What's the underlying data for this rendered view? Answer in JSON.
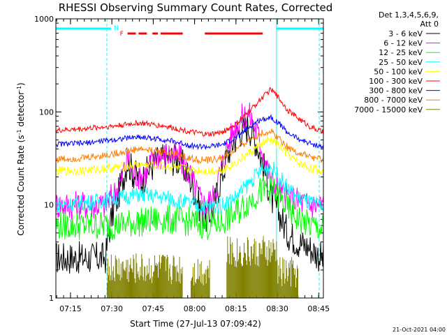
{
  "chart_data": {
    "type": "line",
    "title": "RHESSI Observing Summary Count Rates, Corrected",
    "xlabel": "Start Time (27-Jul-13 07:09:42)",
    "ylabel": "Corrected Count Rate (s⁻¹ detector⁻¹)",
    "ylog": true,
    "ylim": [
      1,
      1000
    ],
    "xlim_min": [
      0,
      97
    ],
    "x_ticks": [
      "07:15",
      "07:30",
      "07:45",
      "08:00",
      "08:15",
      "08:30",
      "08:45"
    ],
    "x_tick_min": [
      5.3,
      20.3,
      35.3,
      50.3,
      65.3,
      80.3,
      95.3
    ],
    "y_ticks": [
      "1",
      "10",
      "100",
      "1000"
    ],
    "y_tick_vals": [
      1,
      10,
      100,
      1000
    ],
    "legend_title": [
      "Det 1,3,4,5,6,9,",
      "Att 0"
    ],
    "series": [
      {
        "name": "3 - 6 keV",
        "color": "#000000",
        "t": [
          0,
          18,
          19,
          20,
          23,
          26,
          28,
          31,
          34,
          37,
          40,
          45,
          49,
          52,
          54,
          57,
          60,
          63,
          66,
          70,
          73,
          76,
          78,
          81,
          84,
          88,
          92,
          97
        ],
        "v": [
          2.7,
          2.7,
          4.5,
          7,
          14,
          30,
          22,
          18,
          25,
          30,
          32,
          30,
          18,
          10,
          7,
          9,
          20,
          40,
          60,
          70,
          45,
          22,
          12,
          8,
          5,
          4,
          3.5,
          2.6
        ]
      },
      {
        "name": "6 - 12 keV",
        "color": "#ff00ff",
        "t": [
          0,
          18,
          20,
          23,
          26,
          28,
          31,
          34,
          37,
          40,
          45,
          49,
          52,
          54,
          57,
          60,
          63,
          66,
          70,
          73,
          76,
          78,
          81,
          84,
          88,
          92,
          97
        ],
        "v": [
          10,
          10,
          12,
          16,
          32,
          22,
          20,
          27,
          33,
          35,
          32,
          20,
          12,
          10,
          12,
          25,
          50,
          80,
          95,
          60,
          30,
          18,
          14,
          12,
          11,
          10,
          10
        ]
      },
      {
        "name": "12 - 25 keV",
        "color": "#00ff00",
        "t": [
          0,
          10,
          20,
          30,
          40,
          50,
          55,
          60,
          65,
          70,
          74,
          78,
          81,
          84,
          88,
          92,
          97
        ],
        "v": [
          6,
          6,
          6,
          6.5,
          7,
          6.5,
          6,
          6.5,
          8,
          11,
          14,
          15,
          12,
          9,
          7,
          6,
          5.5
        ]
      },
      {
        "name": "25 - 50 keV",
        "color": "#00ffff",
        "t": [
          0,
          10,
          20,
          30,
          40,
          50,
          55,
          60,
          65,
          70,
          74,
          78,
          81,
          84,
          88,
          92,
          97
        ],
        "v": [
          10,
          10.5,
          11.5,
          13,
          12,
          10,
          9.5,
          10,
          12,
          17,
          23,
          26,
          20,
          15,
          12,
          10.5,
          9.5
        ]
      },
      {
        "name": "50 - 100 keV",
        "color": "#ffff00",
        "t": [
          0,
          10,
          20,
          30,
          40,
          50,
          55,
          60,
          65,
          70,
          74,
          78,
          81,
          84,
          88,
          92,
          97
        ],
        "v": [
          23,
          23.5,
          25,
          27,
          26,
          23.5,
          23,
          24,
          28,
          36,
          44,
          50,
          43,
          35,
          28,
          25,
          23
        ]
      },
      {
        "name": "100 - 300 keV",
        "color": "#ff0000",
        "t": [
          0,
          10,
          20,
          30,
          40,
          50,
          55,
          60,
          65,
          70,
          74,
          78,
          81,
          84,
          88,
          92,
          97
        ],
        "v": [
          63,
          66,
          70,
          76,
          70,
          60,
          57,
          60,
          72,
          100,
          135,
          175,
          140,
          105,
          85,
          70,
          60
        ]
      },
      {
        "name": "300 - 800 keV",
        "color": "#0000ff",
        "t": [
          0,
          10,
          20,
          30,
          40,
          50,
          55,
          60,
          65,
          70,
          74,
          78,
          81,
          84,
          88,
          92,
          97
        ],
        "v": [
          45,
          46,
          50,
          54,
          50,
          43,
          42,
          44,
          52,
          68,
          82,
          88,
          75,
          60,
          51,
          46,
          42
        ]
      },
      {
        "name": "800 - 7000 keV",
        "color": "#ff8000",
        "t": [
          0,
          10,
          20,
          30,
          40,
          50,
          55,
          60,
          65,
          70,
          74,
          78,
          81,
          84,
          88,
          92,
          97
        ],
        "v": [
          31,
          32,
          35,
          40,
          37,
          31,
          30,
          32,
          38,
          50,
          58,
          62,
          52,
          42,
          36,
          33,
          30
        ]
      },
      {
        "name": "7000 - 15000 keV",
        "color": "#808000",
        "t": [],
        "v": []
      }
    ],
    "flags_top": [
      {
        "label": "N",
        "color": "#00ffff",
        "start_min": 0,
        "end_min": 20
      },
      {
        "label": "N",
        "color": "#00ffff",
        "start_min": 80,
        "end_min": 97
      },
      {
        "label": "F",
        "color": "#ff0000",
        "segments": [
          [
            26,
            29
          ],
          [
            30,
            33
          ],
          [
            35,
            37
          ],
          [
            38,
            46
          ],
          [
            54,
            75
          ]
        ]
      }
    ],
    "vlines_min": [
      {
        "t": 0,
        "style": "solid"
      },
      {
        "t": 18.5,
        "style": "dashed"
      },
      {
        "t": 80,
        "style": "solid"
      },
      {
        "t": 95.5,
        "style": "dashed"
      }
    ]
  },
  "footer": {
    "date_stamp": "21-Oct-2021 04:00"
  }
}
